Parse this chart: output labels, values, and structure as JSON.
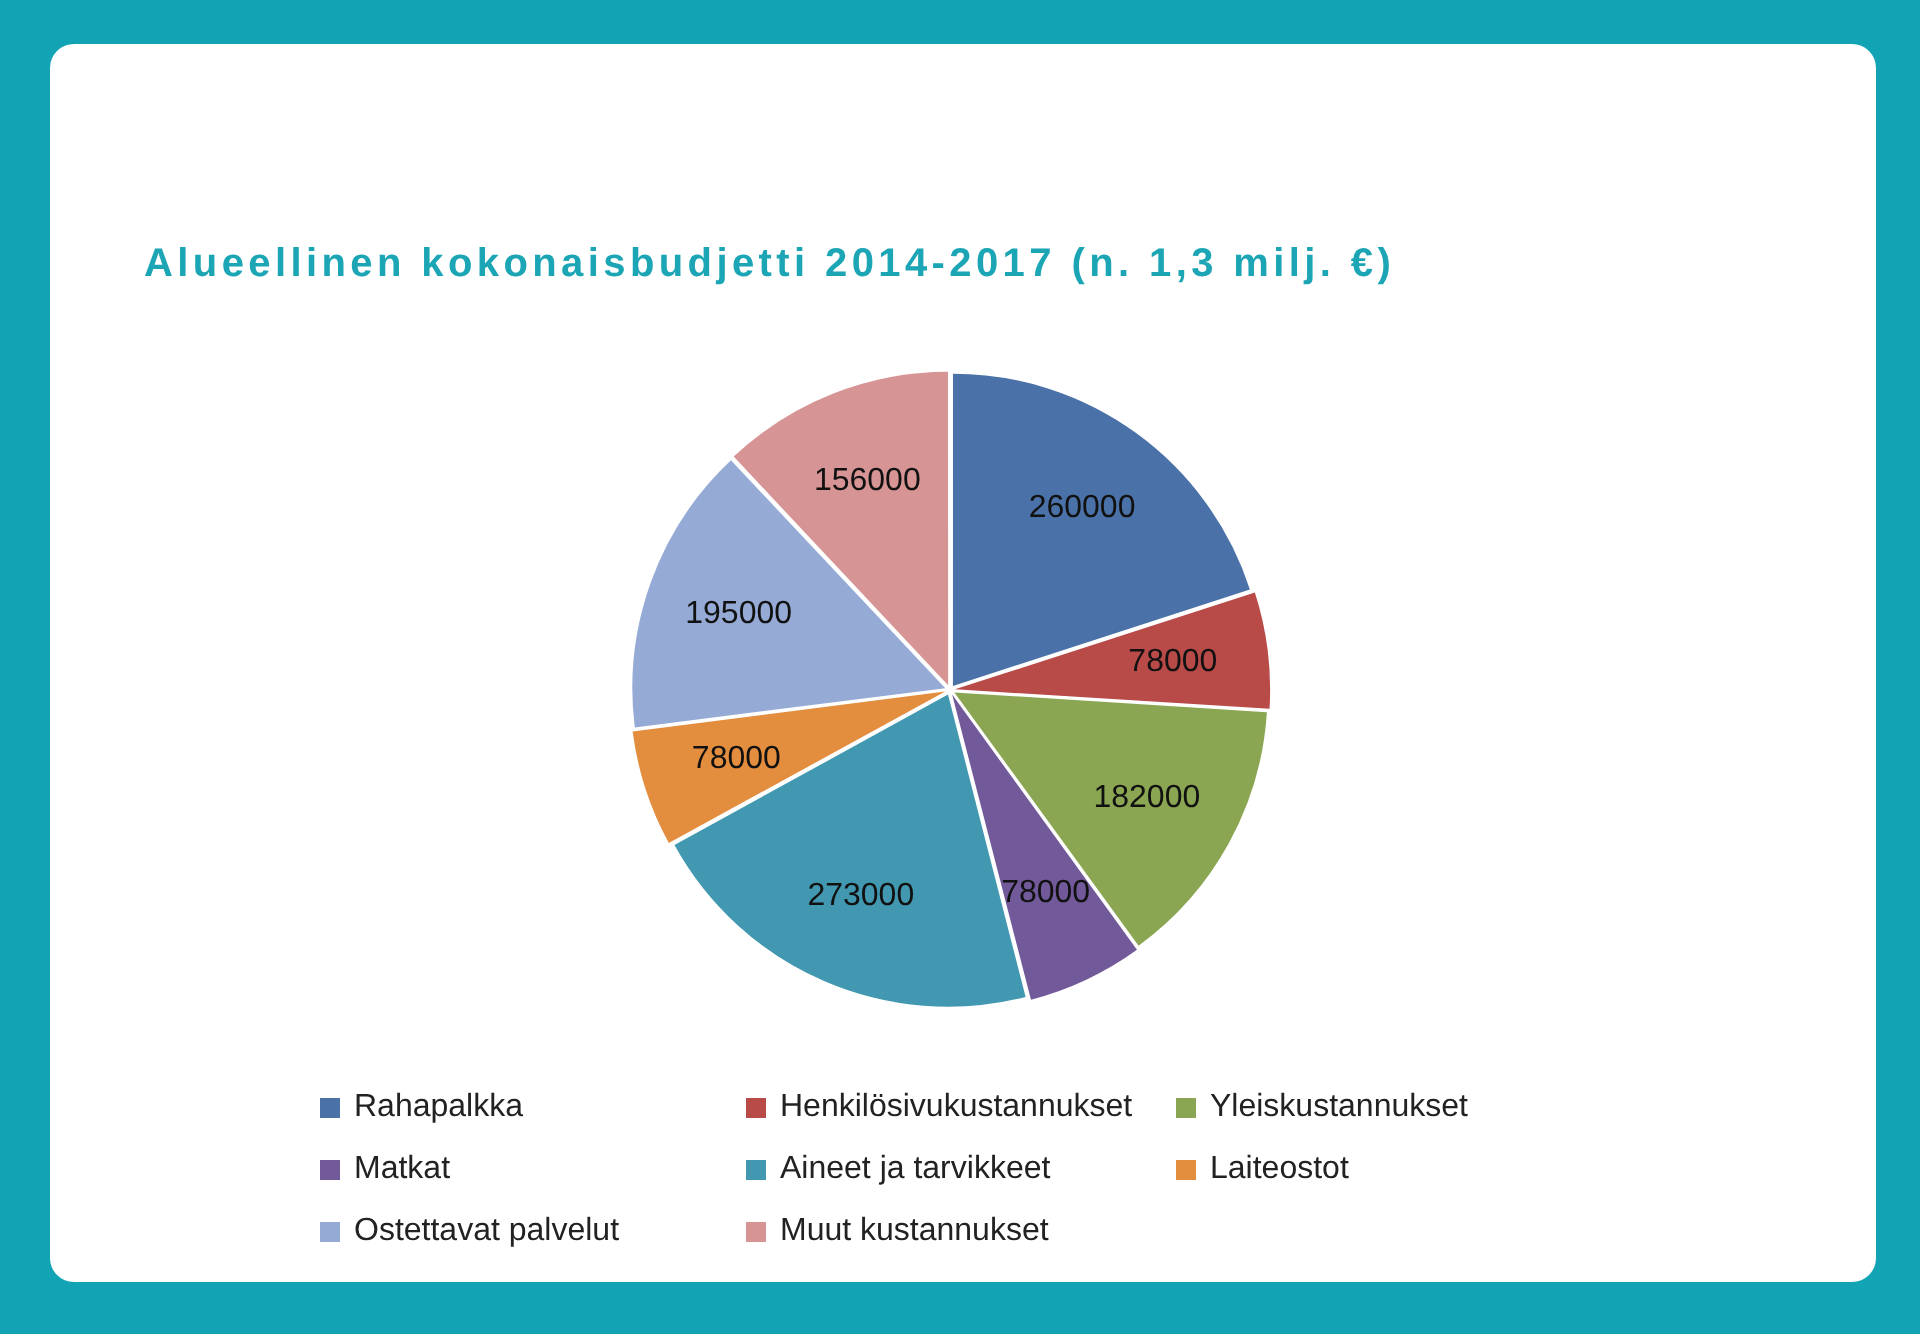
{
  "chart_data": {
    "type": "pie",
    "title": "Alueellinen kokonaisbudjetti 2014-2017 (n. 1,3 milj. €)",
    "categories": [
      "Rahapalkka",
      "Henkilösivukustannukset",
      "Yleiskustannukset",
      "Matkat",
      "Aineet ja tarvikkeet",
      "Laiteostot",
      "Ostettavat palvelut",
      "Muut kustannukset"
    ],
    "values": [
      260000,
      78000,
      182000,
      78000,
      273000,
      78000,
      195000,
      156000
    ],
    "colors": [
      "#4a72a8",
      "#b84a48",
      "#8ba652",
      "#72599a",
      "#4298b0",
      "#e38d3f",
      "#95abd6",
      "#d69594"
    ],
    "legend": "bottom",
    "data_labels": true
  }
}
